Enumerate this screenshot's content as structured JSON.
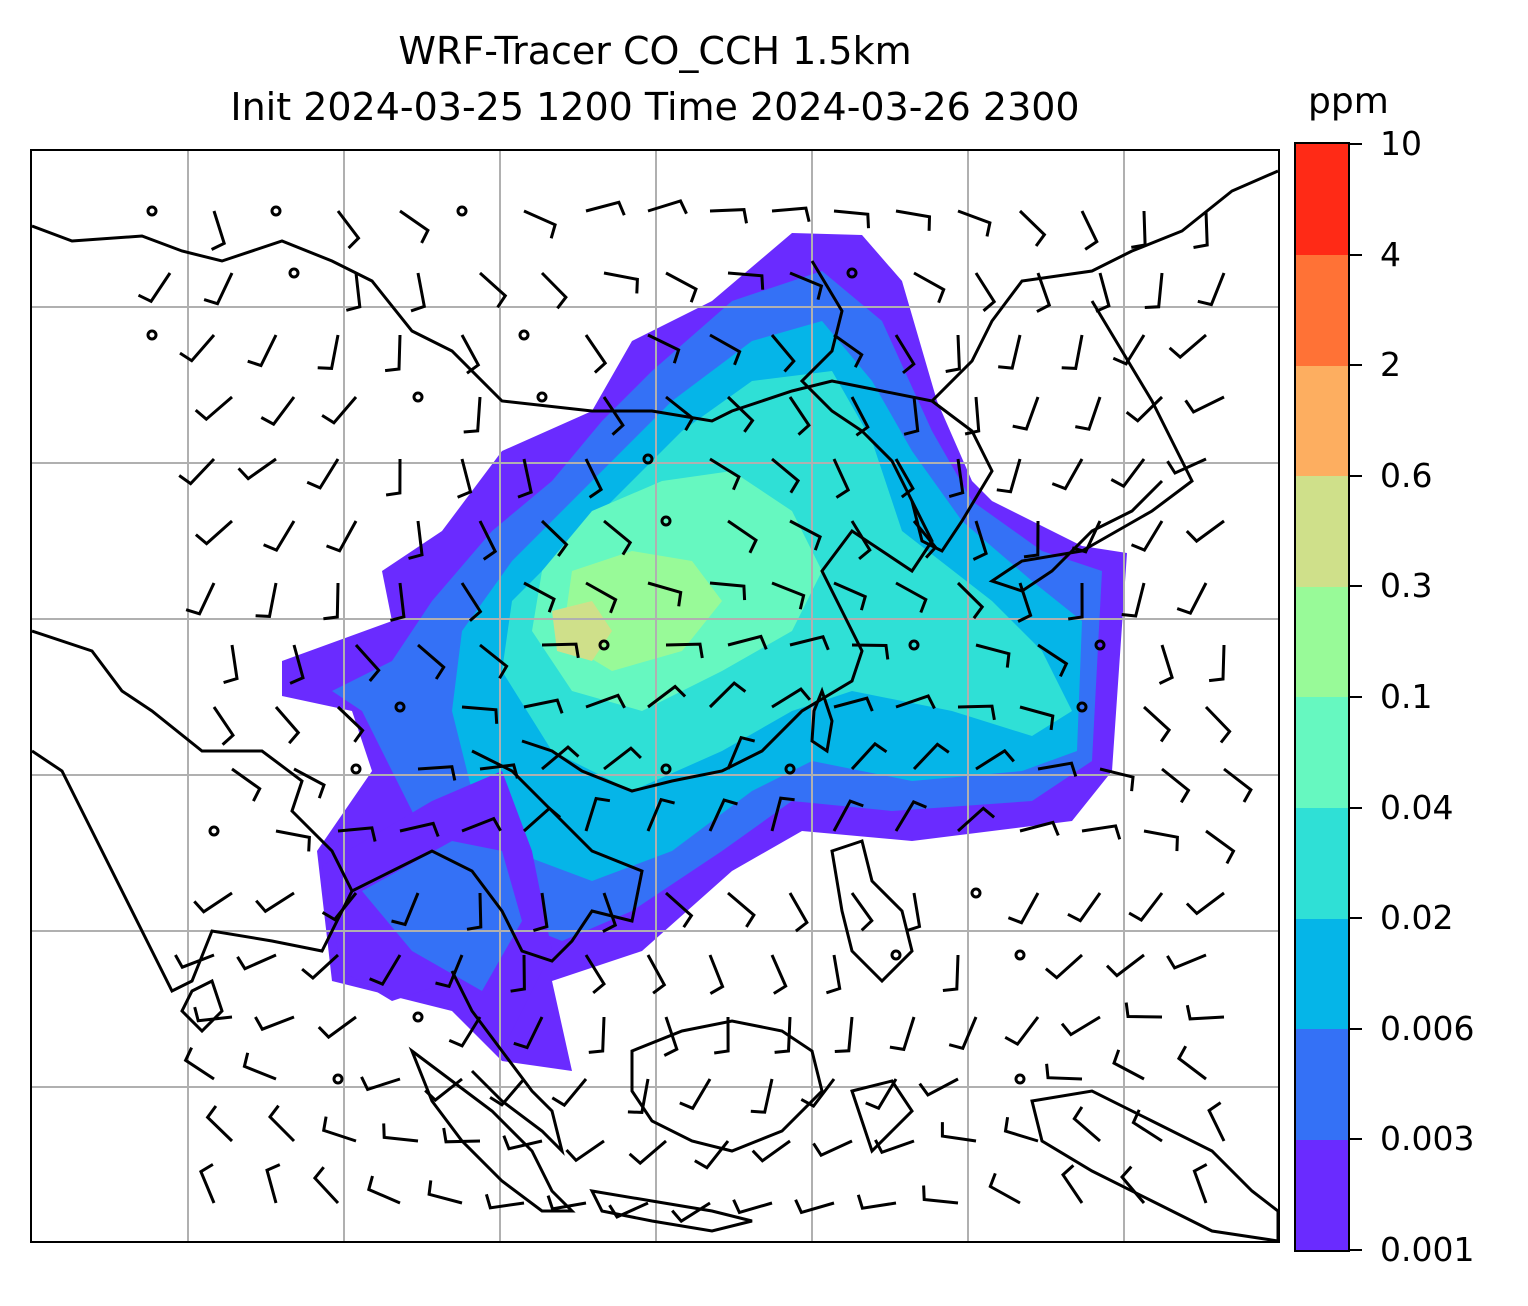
{
  "title": {
    "line1": "WRF-Tracer CO_CCH 1.5km",
    "line2": "Init 2024-03-25 1200 Time 2024-03-26 2300"
  },
  "colorbar": {
    "units": "ppm",
    "ticks": [
      "0.001",
      "0.003",
      "0.006",
      "0.02",
      "0.04",
      "0.1",
      "0.3",
      "0.6",
      "2",
      "4",
      "10"
    ],
    "colors": [
      "#6a2bff",
      "#3471f6",
      "#05b5e8",
      "#2fe0d6",
      "#66f8c0",
      "#98fa98",
      "#cfe08a",
      "#fdae60",
      "#ff7236",
      "#ff2a16"
    ]
  },
  "map": {
    "projection": "regional map, East/Southeast Asia",
    "gridlines": true,
    "coastlines": true,
    "wind_barbs": true,
    "field": "CO_CCH tracer concentration",
    "palette": {
      "coast": "#000000",
      "grid": "#b0b0b0",
      "barb": "#000000"
    }
  }
}
